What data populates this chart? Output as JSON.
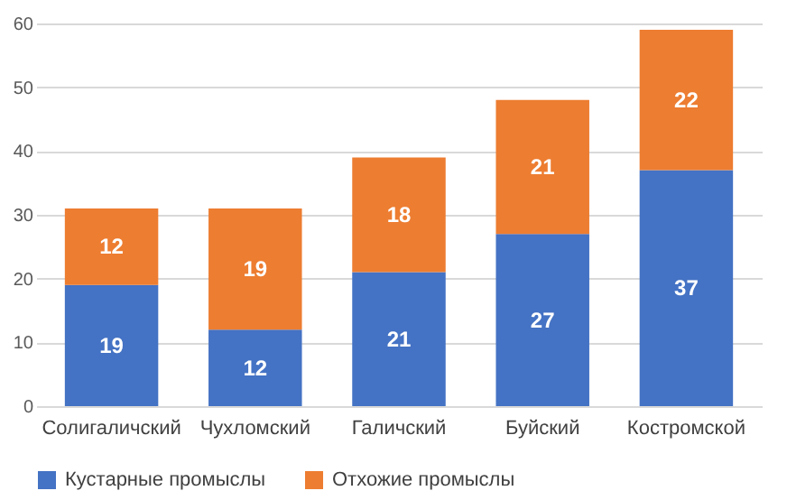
{
  "chart_data": {
    "type": "bar",
    "stacked": true,
    "categories": [
      "Солигаличский",
      "Чухломский",
      "Галичский",
      "Буйский",
      "Костромской"
    ],
    "series": [
      {
        "name": "Кустарные промыслы",
        "color": "#4472c4",
        "values": [
          19,
          12,
          21,
          27,
          37
        ]
      },
      {
        "name": "Отхожие промыслы",
        "color": "#ed7d31",
        "values": [
          12,
          19,
          18,
          21,
          22
        ]
      }
    ],
    "ylim": [
      0,
      60
    ],
    "yticks": [
      0,
      10,
      20,
      30,
      40,
      50,
      60
    ],
    "grid": "y",
    "legend": "bottom",
    "data_labels": true
  }
}
